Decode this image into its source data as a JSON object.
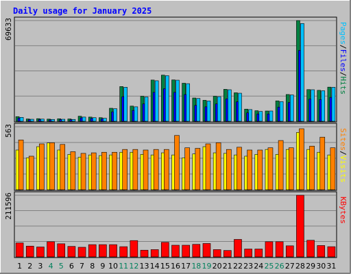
{
  "chart_data": {
    "type": "bar",
    "title": "Daily usage for January 2025",
    "categories": [
      "1",
      "2",
      "3",
      "4",
      "5",
      "6",
      "7",
      "8",
      "9",
      "10",
      "11",
      "12",
      "13",
      "14",
      "15",
      "16",
      "17",
      "18",
      "19",
      "20",
      "21",
      "22",
      "23",
      "24",
      "25",
      "26",
      "27",
      "28",
      "29",
      "30",
      "31"
    ],
    "weekend_days": [
      "4",
      "5",
      "11",
      "12",
      "18",
      "19",
      "25",
      "26"
    ],
    "panels": [
      {
        "id": "hits",
        "max_label": "69633",
        "ymax": 69633,
        "series": [
          {
            "name": "Hits",
            "color": "#008040",
            "values": [
              3200,
              1600,
              1800,
              1500,
              1700,
              1600,
              3500,
              2900,
              2500,
              9000,
              24000,
              10500,
              17300,
              28500,
              31900,
              28600,
              26300,
              16100,
              14500,
              17300,
              22100,
              19700,
              8400,
              7300,
              7100,
              14100,
              18500,
              69633,
              21900,
              21400,
              23600
            ]
          },
          {
            "name": "Files",
            "color": "#0000ff",
            "values": [
              2200,
              1100,
              1200,
              1000,
              1200,
              1100,
              2400,
              2000,
              1700,
              6500,
              17000,
              7500,
              12000,
              20000,
              22500,
              20000,
              18500,
              11000,
              10000,
              12000,
              15500,
              13500,
              5800,
              5000,
              5000,
              9800,
              13000,
              49000,
              15300,
              15000,
              16500
            ]
          },
          {
            "name": "Pages",
            "color": "#00c0ff",
            "values": [
              2700,
              1400,
              1500,
              1300,
              1400,
              1300,
              2900,
              2500,
              2100,
              8700,
              23500,
              10000,
              16800,
              28000,
              31500,
              28400,
              26000,
              15800,
              14000,
              17000,
              21800,
              19400,
              8100,
              6800,
              7100,
              13600,
              18200,
              67600,
              21800,
              21100,
              23500
            ]
          }
        ],
        "axis_label_parts": [
          {
            "text": "Pages",
            "color": "#00c0ff"
          },
          {
            "text": "/",
            "color": "#000000"
          },
          {
            "text": "Files",
            "color": "#0000ff"
          },
          {
            "text": "/",
            "color": "#000000"
          },
          {
            "text": "Hits",
            "color": "#008040"
          }
        ]
      },
      {
        "id": "visits",
        "max_label": "563",
        "ymax": 563,
        "series": [
          {
            "name": "Visits",
            "color": "#ffff00",
            "values": [
              355,
              285,
              385,
              418,
              355,
              316,
              291,
              311,
              305,
              311,
              335,
              335,
              316,
              311,
              330,
              311,
              285,
              320,
              385,
              330,
              325,
              311,
              300,
              316,
              360,
              316,
              360,
              512,
              360,
              335,
              311
            ]
          },
          {
            "name": "Sites",
            "color": "#ff8000",
            "values": [
              445,
              300,
              410,
              420,
              405,
              340,
              325,
              330,
              335,
              335,
              360,
              360,
              355,
              360,
              360,
              485,
              375,
              370,
              410,
              420,
              360,
              380,
              355,
              355,
              375,
              440,
              375,
              545,
              390,
              470,
              375
            ]
          }
        ],
        "axis_label_parts": [
          {
            "text": "Sites",
            "color": "#ff8000"
          },
          {
            "text": "/",
            "color": "#000000"
          },
          {
            "text": "Visits",
            "color": "#ffff00"
          }
        ]
      },
      {
        "id": "kbytes",
        "max_label": "211596",
        "ymax": 211596,
        "series": [
          {
            "name": "KBytes",
            "color": "#ff0000",
            "values": [
              48000,
              37000,
              34000,
              52000,
              45000,
              36000,
              33000,
              42000,
              42000,
              42000,
              35000,
              56000,
              23000,
              25000,
              50000,
              40000,
              40000,
              43000,
              46000,
              25000,
              22000,
              60000,
              27000,
              27000,
              52000,
              52000,
              38000,
              211596,
              57000,
              39000,
              35000
            ]
          }
        ],
        "axis_label_parts": [
          {
            "text": "KBytes",
            "color": "#ff0000"
          }
        ]
      }
    ],
    "colors": {
      "background": "#c0c0c0",
      "title": "#0000ff",
      "weekend_label": "#00805c",
      "weekday_label": "#000000",
      "grid": "#808080"
    },
    "grid": true,
    "legend": "right"
  }
}
